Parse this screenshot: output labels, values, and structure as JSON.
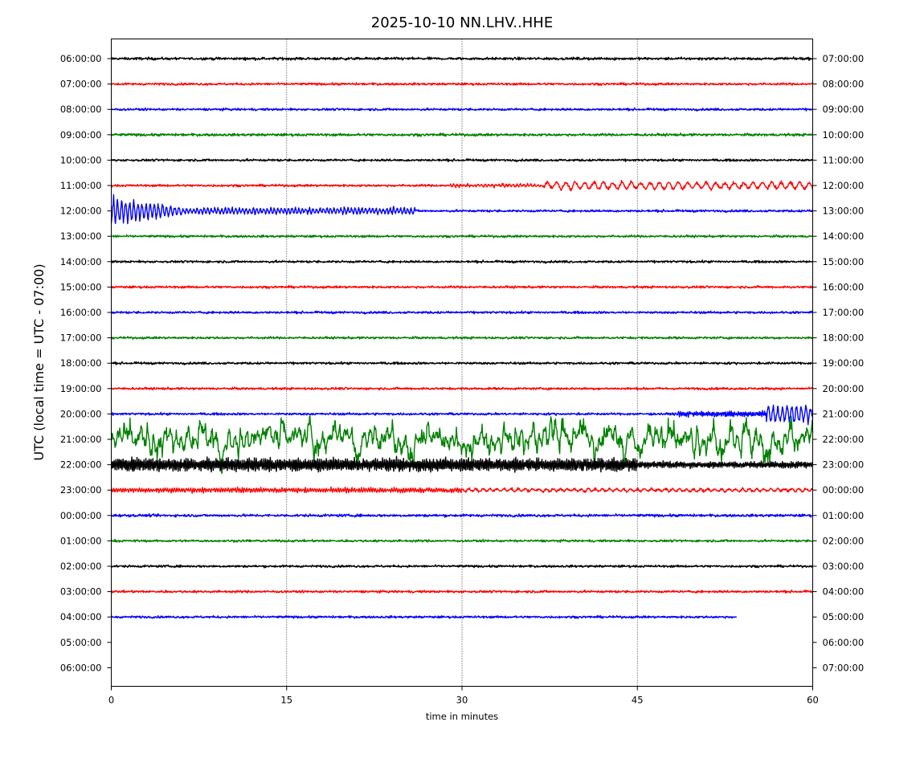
{
  "chart_data": {
    "type": "line",
    "title": "2025-10-10 NN.LHV..HHE",
    "xlabel": "time in minutes",
    "ylabel": "UTC (local time = UTC - 07:00)",
    "xlim": [
      0,
      60
    ],
    "x_ticks": [
      0,
      15,
      30,
      45,
      60
    ],
    "x_tick_labels": [
      "0",
      "15",
      "30",
      "45",
      "60"
    ],
    "grid": "vertical dotted lines at 15, 30, 45",
    "line_colors": [
      "#000000",
      "#ff0000",
      "#0000ff",
      "#008000"
    ],
    "left_tick_labels": [
      "06:00:00",
      "07:00:00",
      "08:00:00",
      "09:00:00",
      "10:00:00",
      "11:00:00",
      "12:00:00",
      "13:00:00",
      "14:00:00",
      "15:00:00",
      "16:00:00",
      "17:00:00",
      "18:00:00",
      "19:00:00",
      "20:00:00",
      "21:00:00",
      "22:00:00",
      "23:00:00",
      "00:00:00",
      "01:00:00",
      "02:00:00",
      "03:00:00",
      "04:00:00",
      "05:00:00",
      "06:00:00"
    ],
    "right_tick_labels": [
      "07:00:00",
      "08:00:00",
      "09:00:00",
      "10:00:00",
      "11:00:00",
      "12:00:00",
      "13:00:00",
      "14:00:00",
      "15:00:00",
      "16:00:00",
      "17:00:00",
      "18:00:00",
      "19:00:00",
      "20:00:00",
      "21:00:00",
      "22:00:00",
      "23:00:00",
      "00:00:00",
      "01:00:00",
      "02:00:00",
      "03:00:00",
      "04:00:00",
      "05:00:00",
      "06:00:00",
      "07:00:00"
    ],
    "traces": [
      {
        "label": "06:00:00",
        "color": "#000000",
        "noise": 0.35,
        "end_min": 60
      },
      {
        "label": "07:00:00",
        "color": "#ff0000",
        "noise": 0.3,
        "end_min": 60
      },
      {
        "label": "08:00:00",
        "color": "#0000ff",
        "noise": 0.3,
        "end_min": 60
      },
      {
        "label": "09:00:00",
        "color": "#008000",
        "noise": 0.35,
        "end_min": 60
      },
      {
        "label": "10:00:00",
        "color": "#000000",
        "noise": 0.3,
        "end_min": 60
      },
      {
        "label": "11:00:00",
        "color": "#ff0000",
        "noise": 0.3,
        "end_min": 60,
        "events": [
          {
            "start": 29,
            "end": 37,
            "amp": 0.5,
            "period": 0.3
          },
          {
            "start": 37,
            "end": 60,
            "amp": 1.5,
            "period": 0.8
          }
        ]
      },
      {
        "label": "12:00:00",
        "color": "#0000ff",
        "noise": 0.3,
        "end_min": 60,
        "events": [
          {
            "start": 0,
            "end": 6,
            "amp": 5.5,
            "period": 0.35,
            "decay": true
          },
          {
            "start": 6,
            "end": 26,
            "amp": 1.2,
            "period": 0.3
          }
        ]
      },
      {
        "label": "13:00:00",
        "color": "#008000",
        "noise": 0.3,
        "end_min": 60
      },
      {
        "label": "14:00:00",
        "color": "#000000",
        "noise": 0.3,
        "end_min": 60
      },
      {
        "label": "15:00:00",
        "color": "#ff0000",
        "noise": 0.3,
        "end_min": 60
      },
      {
        "label": "16:00:00",
        "color": "#0000ff",
        "noise": 0.3,
        "end_min": 60
      },
      {
        "label": "17:00:00",
        "color": "#008000",
        "noise": 0.3,
        "end_min": 60
      },
      {
        "label": "18:00:00",
        "color": "#000000",
        "noise": 0.3,
        "end_min": 60
      },
      {
        "label": "19:00:00",
        "color": "#ff0000",
        "noise": 0.3,
        "end_min": 60
      },
      {
        "label": "20:00:00",
        "color": "#0000ff",
        "noise": 0.3,
        "end_min": 60,
        "events": [
          {
            "start": 48.5,
            "end": 56,
            "amp": 0.9,
            "period": 0.15
          },
          {
            "start": 56,
            "end": 60,
            "amp": 3.5,
            "period": 0.4
          }
        ]
      },
      {
        "label": "21:00:00",
        "color": "#008000",
        "noise": 0.3,
        "end_min": 60,
        "events": [
          {
            "start": 0,
            "end": 60,
            "amp": 6.5,
            "period": 0.5,
            "spiky": true
          }
        ]
      },
      {
        "label": "22:00:00",
        "color": "#000000",
        "noise": 0.3,
        "end_min": 60,
        "events": [
          {
            "start": 0,
            "end": 45,
            "amp": 2.4,
            "period": 0.15
          },
          {
            "start": 45,
            "end": 60,
            "amp": 1.1,
            "period": 0.15
          }
        ]
      },
      {
        "label": "23:00:00",
        "color": "#ff0000",
        "noise": 0.3,
        "end_min": 60,
        "events": [
          {
            "start": 0,
            "end": 30,
            "amp": 0.8,
            "period": 0.2
          },
          {
            "start": 30,
            "end": 60,
            "amp": 0.6,
            "period": 0.6
          }
        ]
      },
      {
        "label": "00:00:00",
        "color": "#0000ff",
        "noise": 0.35,
        "end_min": 60
      },
      {
        "label": "01:00:00",
        "color": "#008000",
        "noise": 0.3,
        "end_min": 60
      },
      {
        "label": "02:00:00",
        "color": "#000000",
        "noise": 0.3,
        "end_min": 60
      },
      {
        "label": "03:00:00",
        "color": "#ff0000",
        "noise": 0.3,
        "end_min": 60
      },
      {
        "label": "04:00:00",
        "color": "#0000ff",
        "noise": 0.3,
        "end_min": 53.5
      },
      {
        "label": "05:00:00",
        "color": "#008000",
        "noise": 0,
        "end_min": 0
      },
      {
        "label": "06:00:00",
        "color": "#000000",
        "noise": 0,
        "end_min": 0
      }
    ]
  }
}
